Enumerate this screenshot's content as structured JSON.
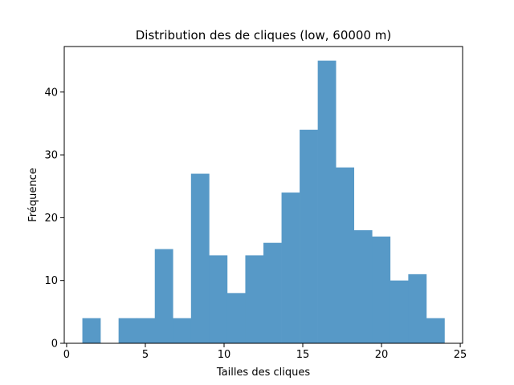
{
  "chart_data": {
    "type": "bar",
    "title": "Distribution des de cliques (low, 60000 m)",
    "xlabel": "Tailles des cliques",
    "ylabel": "Fréquence",
    "xlim": [
      -0.15,
      25.15
    ],
    "ylim": [
      0,
      47.25
    ],
    "xticks": [
      0,
      5,
      10,
      15,
      20,
      25
    ],
    "yticks": [
      0,
      10,
      20,
      30,
      40
    ],
    "bin_edges": [
      1.0,
      2.15,
      3.3,
      4.45,
      5.6,
      6.75,
      7.9,
      9.05,
      10.2,
      11.35,
      12.5,
      13.65,
      14.8,
      15.95,
      17.1,
      18.25,
      19.4,
      20.55,
      21.7,
      22.85,
      24.0
    ],
    "values": [
      4,
      0,
      4,
      4,
      15,
      4,
      27,
      14,
      8,
      14,
      16,
      24,
      34,
      45,
      28,
      18,
      17,
      10,
      11,
      4
    ],
    "bar_color": "#5799c7",
    "grid": false
  }
}
